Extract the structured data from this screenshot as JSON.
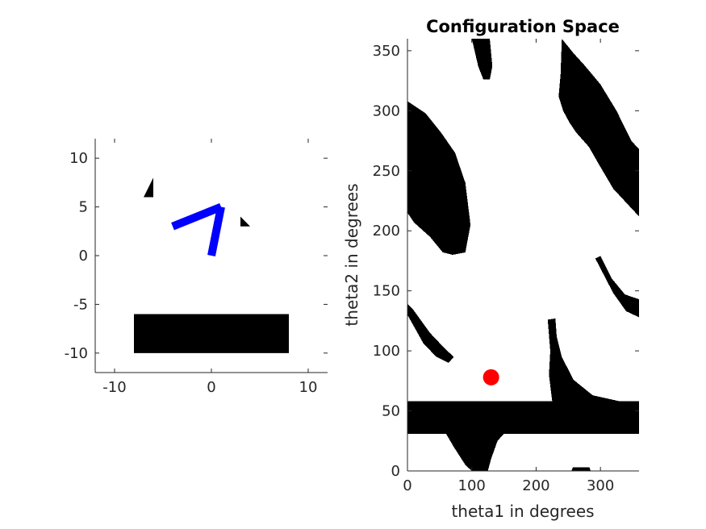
{
  "chart_data": [
    {
      "type": "scatter",
      "title": "",
      "xlabel": "",
      "ylabel": "",
      "xlim": [
        -12,
        12
      ],
      "ylim": [
        -12,
        12
      ],
      "xticks": [
        -10,
        0,
        10
      ],
      "yticks": [
        10,
        5,
        0,
        -5,
        -10
      ],
      "grid": false,
      "obstacles": [
        {
          "name": "",
          "color": "#000000",
          "points": [
            [
              -8,
              -6
            ],
            [
              8,
              -6
            ],
            [
              8,
              -10
            ],
            [
              -8,
              -10
            ]
          ]
        },
        {
          "name": "",
          "color": "#000000",
          "points": [
            [
              -7,
              6
            ],
            [
              -6,
              8
            ],
            [
              -6,
              6
            ]
          ]
        },
        {
          "name": "",
          "color": "#000000",
          "points": [
            [
              3,
              4
            ],
            [
              4,
              3
            ],
            [
              3,
              3
            ]
          ]
        }
      ],
      "arm": {
        "color": "#0000ff",
        "base": [
          0,
          0
        ],
        "joint": [
          1,
          5
        ],
        "tip": [
          -4,
          3
        ]
      }
    },
    {
      "type": "heatmap",
      "title": "Configuration Space",
      "xlabel": "theta1 in degrees",
      "ylabel": "theta2 in degrees",
      "xlim": [
        0,
        360
      ],
      "ylim": [
        0,
        360
      ],
      "xticks": [
        0,
        100,
        200,
        300
      ],
      "yticks": [
        350,
        300,
        250,
        200,
        150,
        100,
        50,
        0
      ],
      "grid": false,
      "colors": {
        "free": "#ffffff",
        "collision": "#000000"
      },
      "collision_regions": [
        {
          "name": "",
          "points": [
            [
              0,
              58
            ],
            [
              360,
              58
            ],
            [
              360,
              31
            ],
            [
              0,
              31
            ]
          ]
        },
        {
          "name": "",
          "points": [
            [
              225,
              58
            ],
            [
              220,
              80
            ],
            [
              222,
              100
            ],
            [
              218,
              126
            ],
            [
              230,
              127
            ],
            [
              232,
              112
            ],
            [
              240,
              95
            ],
            [
              258,
              76
            ],
            [
              288,
              63
            ],
            [
              330,
              58
            ]
          ]
        },
        {
          "name": "",
          "points": [
            [
              60,
              31
            ],
            [
              72,
              20
            ],
            [
              90,
              5
            ],
            [
              100,
              0
            ],
            [
              125,
              0
            ],
            [
              130,
              10
            ],
            [
              140,
              25
            ],
            [
              150,
              31
            ]
          ]
        },
        {
          "name": "",
          "points": [
            [
              0,
              308
            ],
            [
              28,
              298
            ],
            [
              52,
              282
            ],
            [
              74,
              265
            ],
            [
              90,
              240
            ],
            [
              98,
              205
            ],
            [
              90,
              182
            ],
            [
              70,
              180
            ],
            [
              55,
              182
            ],
            [
              35,
              195
            ],
            [
              10,
              207
            ],
            [
              0,
              215
            ]
          ]
        },
        {
          "name": "",
          "points": [
            [
              240,
              360
            ],
            [
              258,
              348
            ],
            [
              275,
              338
            ],
            [
              300,
              322
            ],
            [
              325,
              300
            ],
            [
              348,
              275
            ],
            [
              360,
              268
            ],
            [
              360,
              212
            ],
            [
              320,
              235
            ],
            [
              298,
              255
            ],
            [
              282,
              270
            ],
            [
              262,
              282
            ],
            [
              252,
              290
            ],
            [
              242,
              300
            ],
            [
              235,
              312
            ],
            [
              238,
              330
            ]
          ]
        },
        {
          "name": "",
          "points": [
            [
              100,
              360
            ],
            [
              128,
              360
            ],
            [
              132,
              337
            ],
            [
              128,
              326
            ],
            [
              118,
              326
            ],
            [
              110,
              337
            ]
          ]
        },
        {
          "name": "",
          "points": [
            [
              292,
              177
            ],
            [
              320,
              148
            ],
            [
              340,
              133
            ],
            [
              360,
              128
            ],
            [
              360,
              143
            ],
            [
              338,
              147
            ],
            [
              318,
              160
            ],
            [
              300,
              179
            ]
          ]
        },
        {
          "name": "",
          "points": [
            [
              0,
              139
            ],
            [
              8,
              135
            ],
            [
              35,
              115
            ],
            [
              58,
              102
            ],
            [
              72,
              95
            ],
            [
              64,
              90
            ],
            [
              45,
              95
            ],
            [
              25,
              106
            ],
            [
              0,
              130
            ]
          ]
        },
        {
          "name": "",
          "points": [
            [
              255,
              0
            ],
            [
              285,
              0
            ],
            [
              283,
              3
            ],
            [
              257,
              3
            ]
          ]
        }
      ],
      "current_configuration": {
        "theta1": 130,
        "theta2": 78,
        "color": "#ff0000"
      }
    }
  ]
}
